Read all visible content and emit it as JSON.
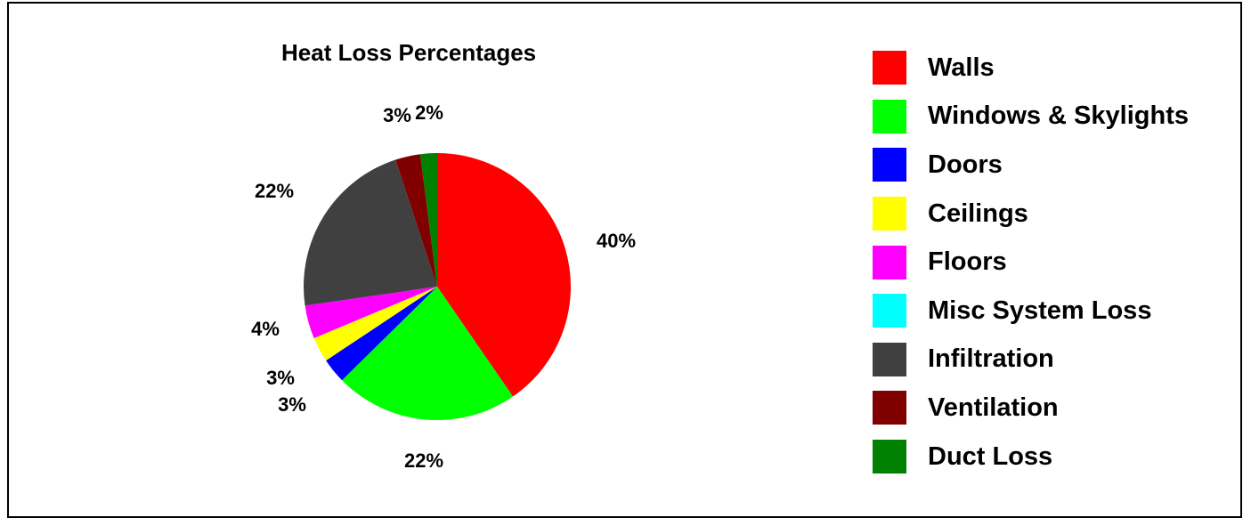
{
  "chart_data": {
    "type": "pie",
    "title": "Heat Loss Percentages",
    "slices": [
      {
        "label": "Walls",
        "value": 40,
        "display": "40%",
        "color": "#ff0000"
      },
      {
        "label": "Windows & Skylights",
        "value": 22,
        "display": "22%",
        "color": "#00ff00"
      },
      {
        "label": "Doors",
        "value": 3,
        "display": "3%",
        "color": "#0000ff"
      },
      {
        "label": "Ceilings",
        "value": 3,
        "display": "3%",
        "color": "#ffff00"
      },
      {
        "label": "Floors",
        "value": 4,
        "display": "4%",
        "color": "#ff00ff"
      },
      {
        "label": "Misc System Loss",
        "value": 0,
        "display": "",
        "color": "#00ffff"
      },
      {
        "label": "Infiltration",
        "value": 22,
        "display": "22%",
        "color": "#404040"
      },
      {
        "label": "Ventilation",
        "value": 3,
        "display": "3%",
        "color": "#800000"
      },
      {
        "label": "Duct Loss",
        "value": 2,
        "display": "2%",
        "color": "#008000"
      }
    ],
    "legend_position": "right"
  }
}
